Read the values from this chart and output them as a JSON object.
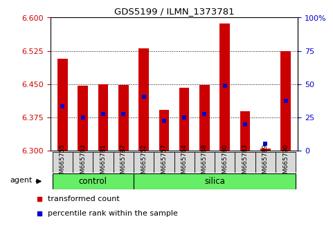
{
  "title": "GDS5199 / ILMN_1373781",
  "samples": [
    "GSM665755",
    "GSM665763",
    "GSM665781",
    "GSM665787",
    "GSM665752",
    "GSM665757",
    "GSM665764",
    "GSM665768",
    "GSM665780",
    "GSM665783",
    "GSM665789",
    "GSM665790"
  ],
  "groups": [
    "control",
    "control",
    "control",
    "control",
    "silica",
    "silica",
    "silica",
    "silica",
    "silica",
    "silica",
    "silica",
    "silica"
  ],
  "bar_tops": [
    6.507,
    6.447,
    6.45,
    6.449,
    6.53,
    6.393,
    6.442,
    6.448,
    6.587,
    6.39,
    6.305,
    6.525
  ],
  "bar_bottom": 6.3,
  "percentile_values": [
    6.4,
    6.375,
    6.383,
    6.383,
    6.422,
    6.368,
    6.376,
    6.383,
    6.447,
    6.36,
    6.316,
    6.412
  ],
  "ylim": [
    6.3,
    6.6
  ],
  "yticks_left": [
    6.3,
    6.375,
    6.45,
    6.525,
    6.6
  ],
  "yticks_right_pct": [
    0,
    25,
    50,
    75,
    100
  ],
  "bar_color": "#cc0000",
  "percentile_color": "#0000cc",
  "group_bg_color": "#66ee66",
  "xlabel_color": "#cc0000",
  "ylabel_right_color": "#0000cc",
  "agent_label": "agent",
  "legend_items": [
    "transformed count",
    "percentile rank within the sample"
  ],
  "fig_width": 4.83,
  "fig_height": 3.54
}
